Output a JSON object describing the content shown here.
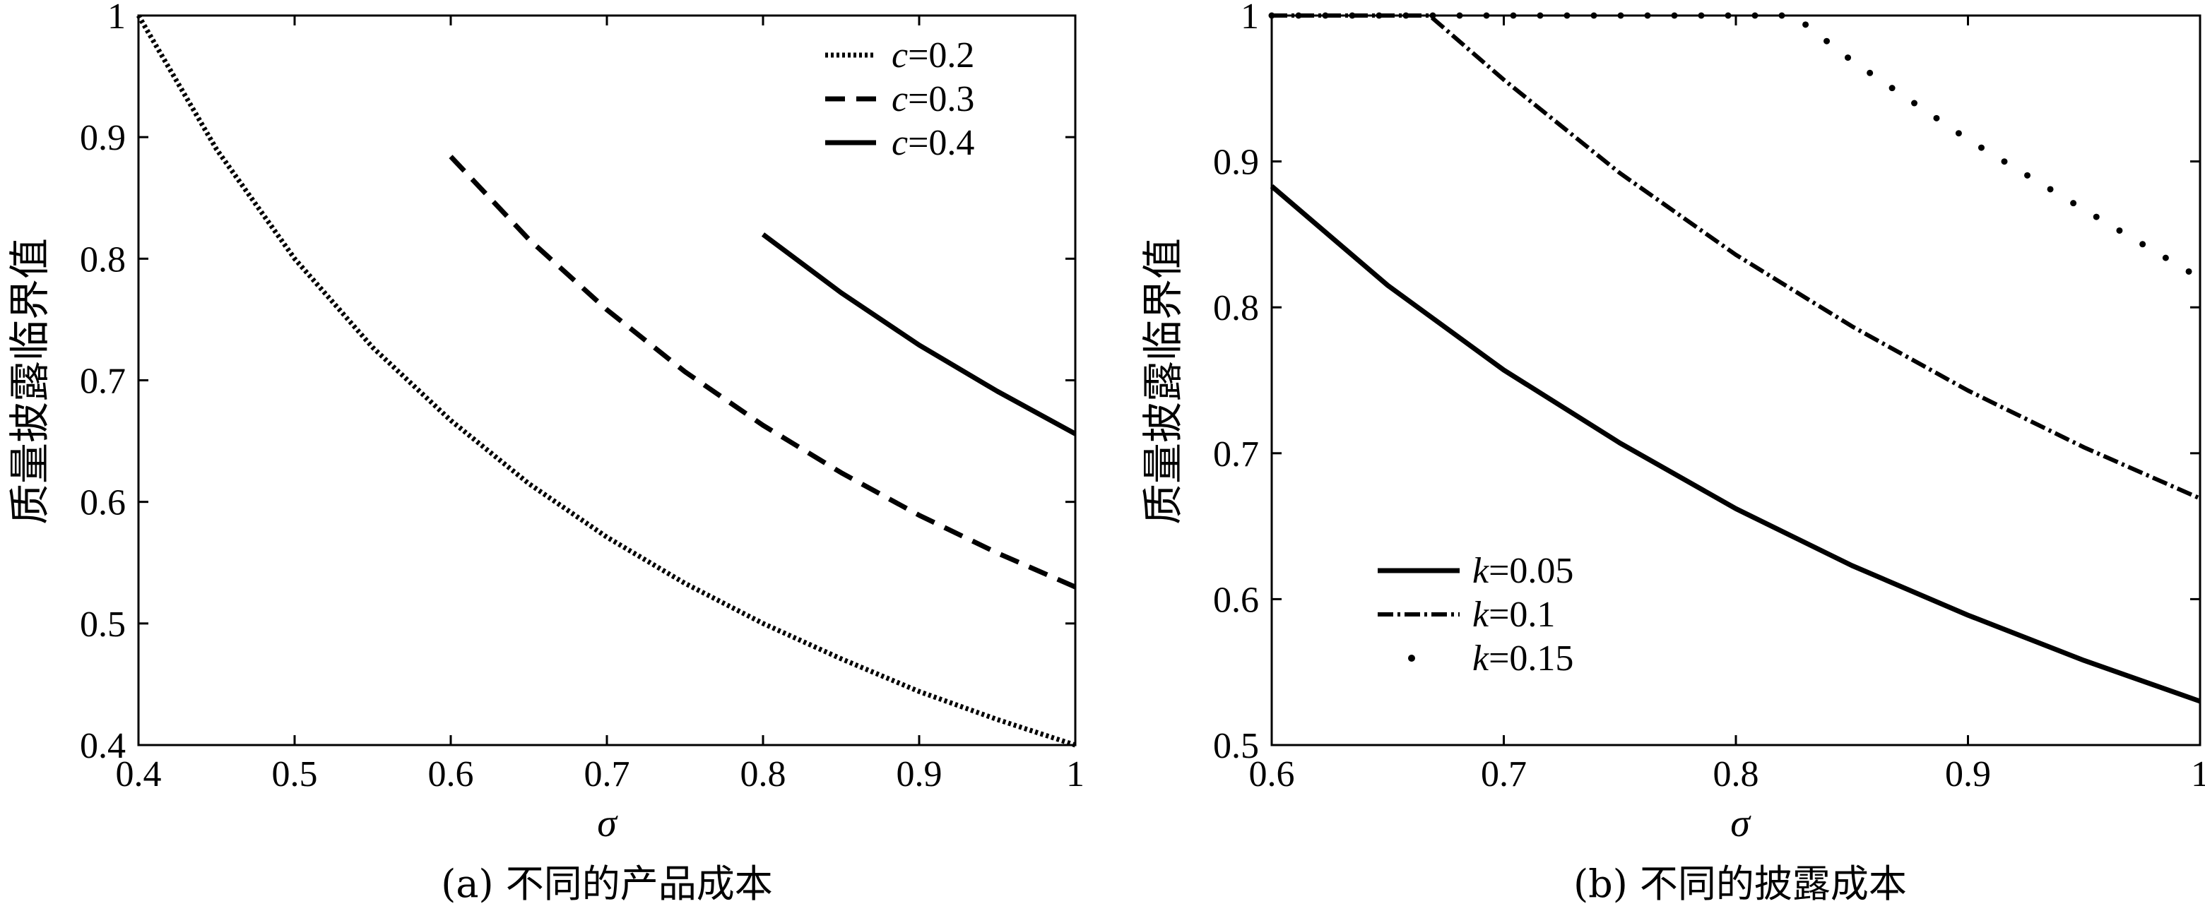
{
  "chart_data": [
    {
      "type": "line",
      "caption": "(a) 不同的产品成本",
      "xlabel": "σ",
      "ylabel": "质量披露临界值",
      "xlim": [
        0.4,
        1
      ],
      "ylim": [
        0.4,
        1
      ],
      "xticks": [
        "0.4",
        "0.5",
        "0.6",
        "0.7",
        "0.8",
        "0.9",
        "1"
      ],
      "yticks": [
        "0.4",
        "0.5",
        "0.6",
        "0.7",
        "0.8",
        "0.9",
        "1"
      ],
      "legend_position": "top-right",
      "series": [
        {
          "name": "c=0.2",
          "var": "c",
          "val": "=0.2",
          "style": "dotted",
          "x": [
            0.4,
            0.45,
            0.5,
            0.55,
            0.6,
            0.65,
            0.7,
            0.75,
            0.8,
            0.85,
            0.9,
            0.95,
            1.0
          ],
          "y": [
            1.0,
            0.89,
            0.8,
            0.727,
            0.667,
            0.615,
            0.571,
            0.533,
            0.5,
            0.471,
            0.444,
            0.421,
            0.4
          ]
        },
        {
          "name": "c=0.3",
          "var": "c",
          "val": "=0.3",
          "style": "dashed",
          "x": [
            0.6,
            0.65,
            0.7,
            0.75,
            0.8,
            0.85,
            0.9,
            0.95,
            1.0
          ],
          "y": [
            0.884,
            0.816,
            0.758,
            0.707,
            0.663,
            0.624,
            0.589,
            0.558,
            0.53
          ]
        },
        {
          "name": "c=0.4",
          "var": "c",
          "val": "=0.4",
          "style": "solid",
          "x": [
            0.8,
            0.85,
            0.9,
            0.95,
            1.0
          ],
          "y": [
            0.82,
            0.772,
            0.729,
            0.691,
            0.656
          ]
        }
      ]
    },
    {
      "type": "line",
      "caption": "(b) 不同的披露成本",
      "xlabel": "σ",
      "ylabel": "质量披露临界值",
      "xlim": [
        0.6,
        1
      ],
      "ylim": [
        0.5,
        1
      ],
      "xticks": [
        "0.6",
        "0.7",
        "0.8",
        "0.9",
        "1"
      ],
      "yticks": [
        "0.5",
        "0.6",
        "0.7",
        "0.8",
        "0.9",
        "1"
      ],
      "legend_position": "bottom-left",
      "series": [
        {
          "name": "k=0.05",
          "var": "k",
          "val": "=0.05",
          "style": "solid",
          "x": [
            0.6,
            0.65,
            0.7,
            0.75,
            0.8,
            0.85,
            0.9,
            0.95,
            1.0
          ],
          "y": [
            0.883,
            0.815,
            0.757,
            0.707,
            0.662,
            0.623,
            0.589,
            0.558,
            0.53
          ]
        },
        {
          "name": "k=0.1",
          "var": "k",
          "val": "=0.1",
          "style": "dashdot",
          "x": [
            0.6,
            0.64,
            0.668,
            0.7,
            0.75,
            0.8,
            0.85,
            0.9,
            0.95,
            1.0
          ],
          "y": [
            1.0,
            1.0,
            1.0,
            0.956,
            0.892,
            0.836,
            0.787,
            0.743,
            0.704,
            0.669
          ]
        },
        {
          "name": "k=0.15",
          "var": "k",
          "val": "=0.15",
          "style": "sparse-dots",
          "x": [
            0.6,
            0.65,
            0.7,
            0.75,
            0.8,
            0.825,
            0.85,
            0.9,
            0.95,
            1.0
          ],
          "y": [
            1.0,
            1.0,
            1.0,
            1.0,
            1.0,
            1.0,
            0.969,
            0.915,
            0.867,
            0.82
          ]
        }
      ]
    }
  ]
}
